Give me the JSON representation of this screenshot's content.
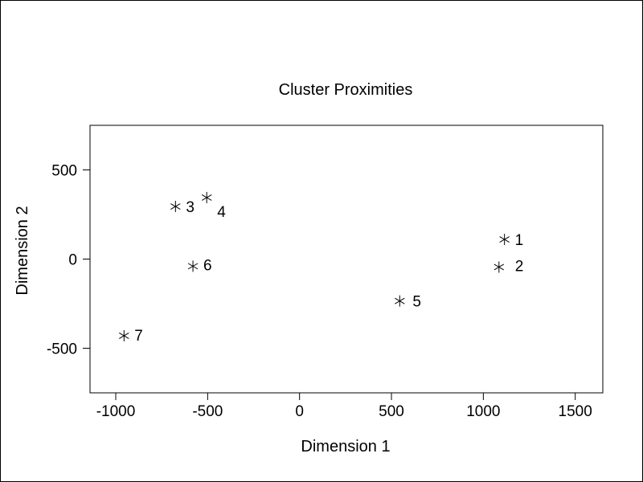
{
  "chart_data": {
    "type": "scatter",
    "title": "Cluster Proximities",
    "xlabel": "Dimension 1",
    "ylabel": "Dimension 2",
    "xlim": [
      -1140,
      1650
    ],
    "ylim": [
      -750,
      750
    ],
    "xticks": [
      -1000,
      -500,
      0,
      500,
      1000,
      1500
    ],
    "yticks": [
      -500,
      0,
      500
    ],
    "grid": false,
    "marker": "asterisk",
    "points": [
      {
        "label": "1",
        "x": 1115,
        "y": 110
      },
      {
        "label": "2",
        "x": 1085,
        "y": -45
      },
      {
        "label": "3",
        "x": -675,
        "y": 295
      },
      {
        "label": "4",
        "x": -505,
        "y": 345
      },
      {
        "label": "5",
        "x": 545,
        "y": -235
      },
      {
        "label": "6",
        "x": -580,
        "y": -40
      },
      {
        "label": "7",
        "x": -955,
        "y": -430
      }
    ]
  }
}
